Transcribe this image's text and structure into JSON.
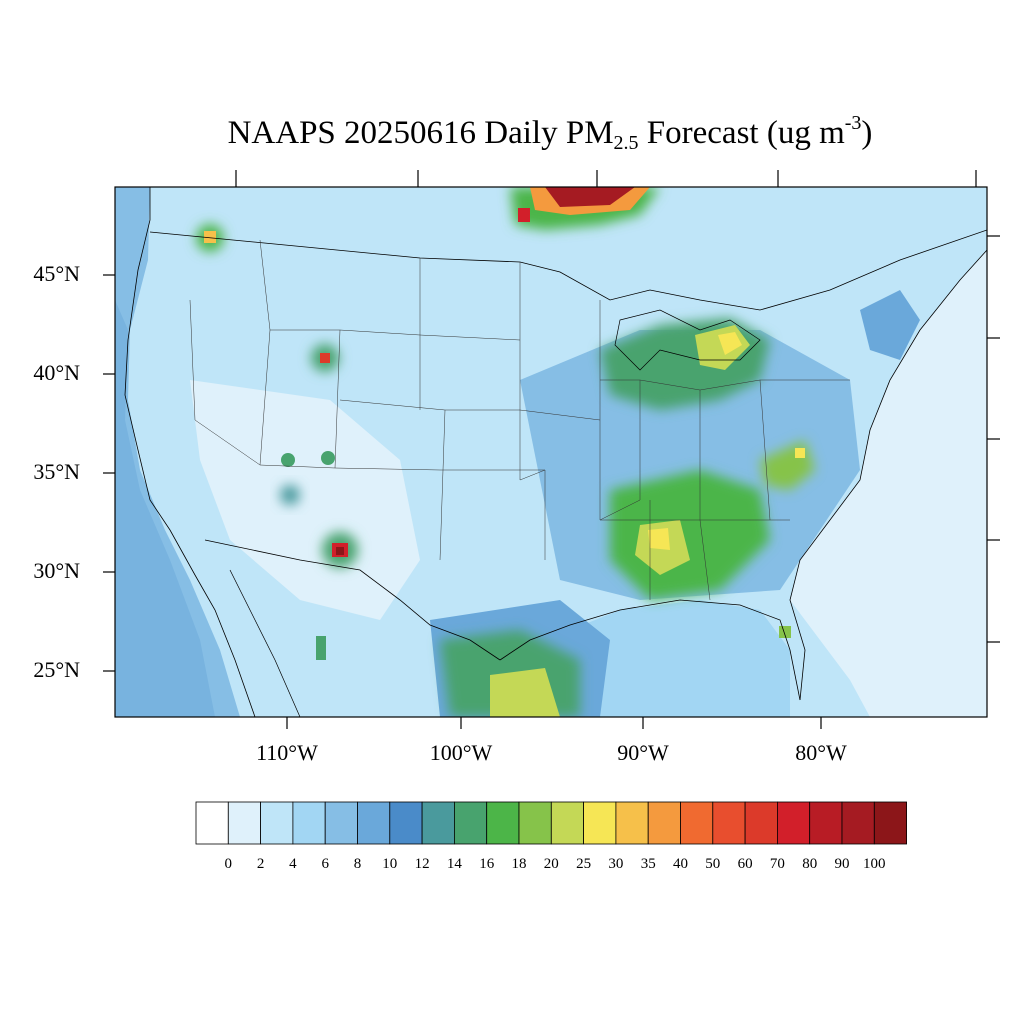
{
  "title": {
    "prefix": "NAAPS 20250616 Daily PM",
    "subscript": "2.5",
    "middle": " Forecast (ug m",
    "superscript": "-3",
    "suffix": ")"
  },
  "lat_labels": [
    "45°N",
    "40°N",
    "35°N",
    "30°N",
    "25°N"
  ],
  "lon_labels": [
    "110°W",
    "100°W",
    "90°W",
    "80°W"
  ],
  "colorbar": {
    "labels": [
      "0",
      "2",
      "4",
      "6",
      "8",
      "10",
      "12",
      "14",
      "16",
      "18",
      "20",
      "25",
      "30",
      "35",
      "40",
      "50",
      "60",
      "70",
      "80",
      "90",
      "100"
    ],
    "colors": [
      "#ffffff",
      "#dff1fb",
      "#bfe5f8",
      "#a2d6f3",
      "#86bee5",
      "#6aa8da",
      "#4a8bc9",
      "#4a9a9d",
      "#48a36e",
      "#4cb548",
      "#86c34a",
      "#c4d856",
      "#f6e655",
      "#f6c04a",
      "#f49a3e",
      "#f06a30",
      "#e84e2e",
      "#dc3a2a",
      "#d21f2a",
      "#b81c25",
      "#a51b22",
      "#8c1619"
    ]
  },
  "map_colors": {
    "background": "#bfe5f8",
    "ocean_atlantic": "#dff1fb",
    "pacific": "#86bee5",
    "coast": "#000000",
    "border": "#333333"
  }
}
